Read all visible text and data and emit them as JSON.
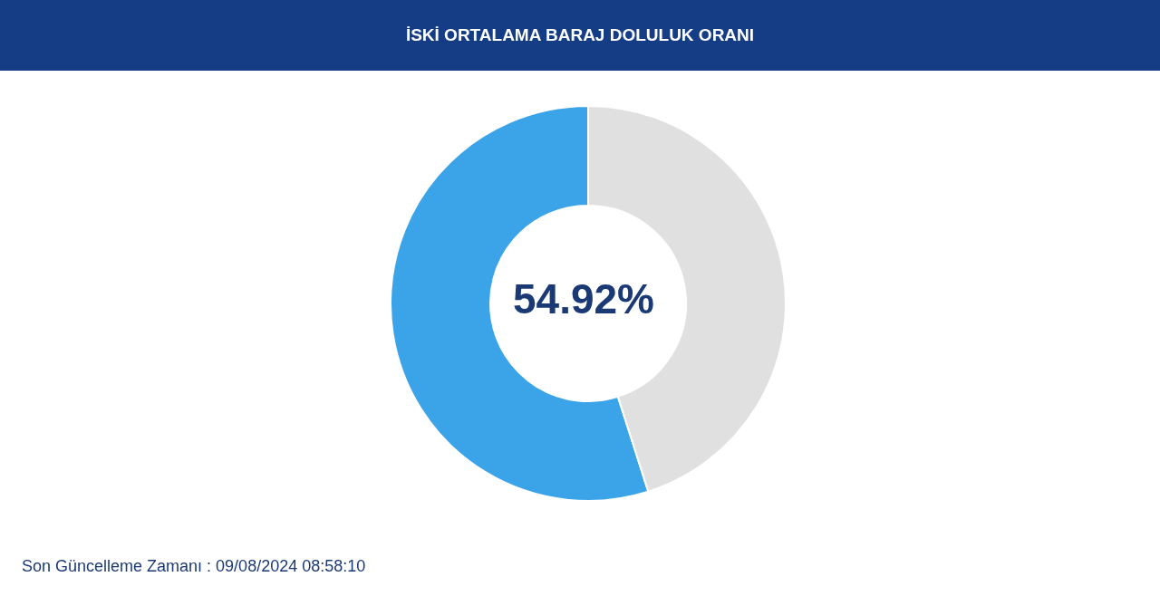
{
  "chart_data": {
    "type": "donut",
    "title": "İSKİ ORTALAMA BARAJ DOLULUK ORANI",
    "categories": [
      null,
      null
    ],
    "values": [
      54.92,
      45.08
    ],
    "colors": [
      "#3ba3e8",
      "#e0e0e0"
    ],
    "value_labels": [
      "54.92%",
      null
    ],
    "legend": false,
    "annotations": [
      "Son Güncelleme Zamanı : 09/08/2024 08:58:10"
    ]
  }
}
